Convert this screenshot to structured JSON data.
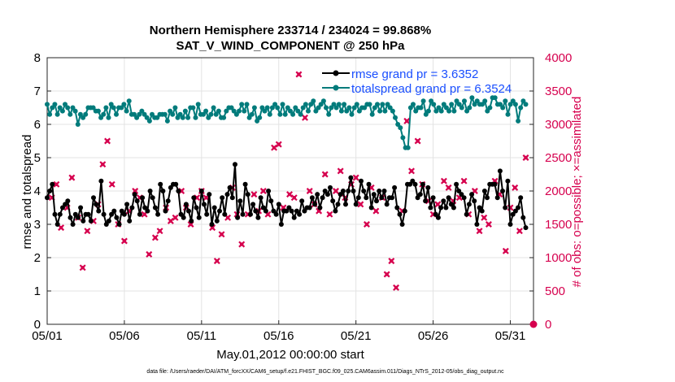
{
  "chart_data": {
    "type": "line",
    "title_line1": "Northern Hemisphere 233714 / 234024 = 99.868%",
    "title_line2": "SAT_V_WIND_COMPONENT @ 250 hPa",
    "xlabel": "May.01,2012 00:00:00 start",
    "ylabel_left": "rmse and totalspread",
    "ylabel_right": "# of obs: o=possible; ×=assimilated",
    "footer": "data file: /Users/raeder/DAI/ATM_forcXX/CAM6_setup/f.e21.FHIST_BGC.f09_025.CAM6assim.011/Diags_NTrS_2012-05/obs_diag_output.nc",
    "x_range": [
      0,
      31.5
    ],
    "x_ticks": [
      0,
      5,
      10,
      15,
      20,
      25,
      30
    ],
    "x_tick_labels": [
      "05/01",
      "05/06",
      "05/11",
      "05/16",
      "05/21",
      "05/26",
      "05/31"
    ],
    "ylim_left": [
      0,
      8
    ],
    "y_ticks_left": [
      "0",
      "1",
      "2",
      "3",
      "4",
      "5",
      "6",
      "7",
      "8"
    ],
    "ylim_right": [
      0,
      4000
    ],
    "y_ticks_right": [
      "0",
      "500",
      "1000",
      "1500",
      "2000",
      "2500",
      "3000",
      "3500",
      "4000"
    ],
    "grid": true,
    "legend_position": "top-right",
    "colors": {
      "rmse": "#000000",
      "spread": "#007b7b",
      "obs": "#d6004e",
      "legend_text": "#1a4fff"
    },
    "series": [
      {
        "name": "rmse grand pr = 3.6352",
        "axis": "left",
        "values": [
          3.8,
          4.0,
          4.2,
          3.3,
          3.0,
          3.3,
          3.5,
          3.6,
          3.7,
          3.2,
          3.0,
          3.3,
          3.2,
          3.5,
          3.1,
          3.3,
          3.3,
          3.1,
          3.8,
          3.6,
          3.4,
          4.3,
          3.3,
          3.0,
          3.1,
          3.3,
          3.4,
          3.2,
          3.0,
          3.4,
          3.3,
          3.6,
          3.1,
          3.5,
          3.9,
          3.7,
          3.3,
          3.8,
          3.5,
          3.4,
          4.0,
          3.8,
          3.5,
          3.3,
          4.2,
          4.0,
          3.4,
          3.7,
          4.1,
          4.2,
          4.2,
          4.0,
          3.3,
          3.2,
          3.6,
          3.4,
          3.1,
          3.8,
          3.5,
          3.2,
          4.0,
          3.6,
          3.3,
          3.9,
          3.0,
          3.5,
          3.1,
          3.4,
          3.8,
          3.3,
          3.9,
          4.1,
          3.8,
          4.8,
          3.2,
          3.7,
          3.3,
          4.2,
          3.9,
          3.3,
          3.6,
          3.4,
          3.2,
          3.8,
          3.5,
          3.4,
          4.0,
          3.7,
          3.4,
          3.3,
          3.6,
          3.0,
          3.4,
          3.4,
          3.5,
          3.4,
          3.2,
          3.4,
          3.3,
          3.7,
          3.4,
          3.5,
          3.5,
          3.8,
          3.6,
          3.9,
          3.5,
          3.8,
          4.0,
          3.9,
          4.1,
          3.7,
          3.4,
          3.6,
          3.9,
          4.0,
          3.6,
          4.0,
          4.4,
          4.0,
          3.6,
          3.8,
          4.3,
          4.0,
          3.8,
          4.2,
          3.5,
          3.9,
          3.7,
          4.0,
          3.8,
          4.0,
          3.6,
          3.8,
          3.8,
          4.1,
          3.5,
          3.3,
          3.0,
          3.4,
          4.2,
          4.2,
          4.3,
          4.2,
          3.8,
          3.9,
          4.2,
          3.7,
          4.1,
          3.5,
          3.8,
          3.3,
          3.2,
          3.5,
          3.7,
          3.5,
          3.8,
          3.6,
          3.5,
          4.2,
          4.0,
          3.9,
          3.8,
          3.3,
          3.6,
          3.9,
          3.7,
          3.0,
          3.5,
          3.4,
          4.0,
          3.8,
          4.2,
          4.2,
          4.2,
          3.8,
          4.6,
          4.0,
          3.5,
          4.3,
          3.0,
          3.3,
          3.4,
          3.5,
          3.8,
          3.2,
          2.9
        ]
      },
      {
        "name": "totalspread grand pr = 6.3524",
        "axis": "left",
        "values": [
          6.6,
          6.3,
          6.5,
          6.6,
          6.3,
          6.5,
          6.4,
          6.6,
          6.5,
          6.3,
          6.5,
          6.4,
          6.0,
          6.3,
          6.2,
          6.3,
          6.5,
          6.5,
          6.5,
          6.4,
          6.4,
          6.2,
          6.3,
          6.5,
          6.2,
          6.6,
          6.5,
          6.3,
          6.5,
          6.5,
          6.6,
          6.4,
          6.7,
          6.3,
          6.3,
          6.2,
          6.3,
          6.4,
          6.3,
          6.2,
          6.1,
          6.3,
          6.2,
          6.2,
          6.3,
          6.3,
          6.3,
          6.1,
          6.4,
          6.3,
          6.5,
          6.2,
          6.3,
          6.2,
          6.4,
          6.2,
          6.5,
          6.5,
          6.2,
          6.6,
          6.3,
          6.3,
          6.4,
          6.2,
          6.3,
          6.5,
          6.3,
          6.4,
          6.2,
          6.2,
          6.4,
          6.5,
          6.5,
          6.4,
          6.3,
          6.4,
          6.6,
          6.4,
          6.6,
          6.2,
          6.3,
          6.5,
          6.1,
          6.2,
          6.5,
          6.4,
          6.5,
          6.3,
          6.5,
          6.6,
          6.5,
          6.3,
          6.6,
          6.3,
          6.5,
          6.4,
          6.3,
          6.5,
          6.4,
          6.3,
          6.5,
          6.6,
          6.4,
          6.6,
          6.7,
          6.4,
          6.5,
          6.6,
          6.7,
          6.5,
          6.3,
          6.5,
          6.6,
          6.5,
          6.6,
          6.4,
          6.6,
          6.4,
          6.5,
          6.3,
          6.5,
          6.6,
          6.4,
          6.5,
          6.5,
          6.6,
          6.6,
          6.3,
          6.5,
          6.6,
          6.4,
          6.6,
          6.4,
          6.6,
          6.5,
          6.4,
          6.2,
          6.0,
          5.9,
          5.6,
          5.3,
          5.3,
          6.5,
          6.6,
          6.4,
          6.5,
          6.5,
          6.7,
          6.3,
          6.4,
          6.7,
          6.6,
          6.4,
          6.5,
          6.4,
          6.6,
          6.5,
          6.4,
          6.6,
          6.4,
          6.7,
          6.6,
          6.5,
          6.7,
          6.4,
          6.5,
          6.8,
          6.6,
          6.7,
          6.6,
          6.6,
          6.7,
          6.4,
          6.5,
          6.8,
          6.8,
          6.6,
          6.6,
          6.5,
          6.7,
          6.3,
          6.6,
          6.7,
          6.6,
          6.1,
          6.5,
          6.7,
          6.6
        ]
      },
      {
        "name": "assimilated obs",
        "axis": "right",
        "x": [
          0.3,
          0.6,
          0.9,
          1.3,
          1.6,
          2.0,
          2.3,
          2.6,
          3.0,
          3.3,
          3.6,
          3.9,
          4.2,
          4.6,
          5.0,
          5.3,
          5.7,
          6.0,
          6.3,
          6.6,
          7.0,
          7.3,
          7.7,
          8.0,
          8.3,
          8.7,
          9.0,
          9.3,
          9.7,
          10.0,
          10.3,
          10.7,
          11.0,
          11.3,
          11.7,
          12.0,
          12.3,
          12.6,
          13.0,
          13.4,
          13.7,
          14.0,
          14.3,
          14.7,
          15.0,
          15.3,
          15.7,
          16.0,
          16.3,
          16.7,
          17.0,
          17.3,
          17.6,
          18.0,
          18.3,
          18.7,
          19.0,
          19.3,
          19.7,
          20.0,
          20.3,
          20.7,
          21.0,
          21.3,
          21.7,
          22.0,
          22.3,
          22.6,
          23.0,
          23.3,
          23.6,
          24.0,
          24.3,
          24.7,
          25.0,
          25.3,
          25.7,
          26.0,
          26.3,
          26.7,
          27.0,
          27.3,
          27.7,
          28.0,
          28.3,
          28.6,
          29.0,
          29.3,
          29.7,
          30.0,
          30.3,
          30.6,
          31.0
        ],
        "values": [
          1900,
          2100,
          1450,
          1750,
          2200,
          1600,
          850,
          1400,
          1550,
          1800,
          2400,
          2750,
          2100,
          1500,
          1250,
          1700,
          2000,
          1900,
          1650,
          1050,
          1300,
          1400,
          1750,
          1550,
          1600,
          2000,
          1750,
          1500,
          1900,
          2000,
          1900,
          1450,
          950,
          1350,
          1600,
          2050,
          1650,
          1200,
          1650,
          1950,
          1700,
          2000,
          1650,
          2650,
          2700,
          1750,
          1950,
          1900,
          3750,
          3100,
          2000,
          1800,
          1700,
          2250,
          1650,
          2000,
          2300,
          1900,
          2100,
          2200,
          1800,
          1500,
          2050,
          1700,
          1900,
          750,
          950,
          550,
          1700,
          3050,
          2300,
          2750,
          2100,
          1850,
          1650,
          1800,
          2150,
          2050,
          1850,
          1900,
          2150,
          1650,
          2000,
          1400,
          1600,
          1500,
          2150,
          1950,
          1100,
          1750,
          2050,
          1400,
          2500
        ]
      }
    ]
  }
}
